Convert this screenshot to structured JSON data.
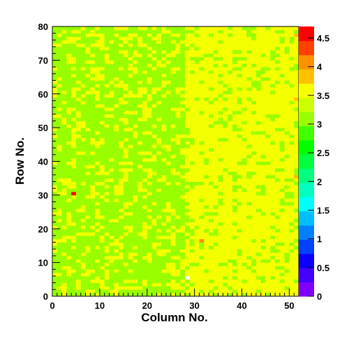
{
  "chart_data": {
    "type": "heatmap",
    "title": "",
    "xlabel": "Column No.",
    "ylabel": "Row No.",
    "x_range": [
      0,
      52
    ],
    "y_range": [
      0,
      80
    ],
    "x_bins": 52,
    "y_bins": 80,
    "x_ticks": [
      "0",
      "10",
      "20",
      "30",
      "40",
      "50"
    ],
    "y_ticks": [
      "0",
      "10",
      "20",
      "30",
      "40",
      "50",
      "60",
      "70",
      "80"
    ],
    "z_range": [
      0,
      4.7
    ],
    "colorbar_ticks": [
      "0",
      "0.5",
      "1",
      "1.5",
      "2",
      "2.5",
      "3",
      "3.5",
      "4",
      "4.5"
    ],
    "palette": [
      "#7f00ff",
      "#4400ff",
      "#0a00ff",
      "#0040ff",
      "#0080ff",
      "#00bfff",
      "#00ffff",
      "#00ffc0",
      "#00ff80",
      "#00ff40",
      "#00ff00",
      "#40ff00",
      "#99ff00",
      "#ccff00",
      "#f4ff00",
      "#ffc000",
      "#ff9000",
      "#ff4000",
      "#ff0000"
    ],
    "typical_values": {
      "columns_0_to_27": 3.1,
      "columns_28_to_52": 3.55
    },
    "notable_cells": [
      {
        "column": 4,
        "row": 30,
        "value": 4.6
      },
      {
        "column": 31,
        "row": 16,
        "value": 4.1
      },
      {
        "column": 28,
        "row": 5,
        "value": 0
      },
      {
        "column": 51,
        "row": 35,
        "value": 3.95
      },
      {
        "column": 51,
        "row": 58,
        "value": 3.95
      },
      {
        "column": 51,
        "row": 77,
        "value": 3.95
      }
    ],
    "grid": false,
    "legend": "colorbar-right"
  }
}
